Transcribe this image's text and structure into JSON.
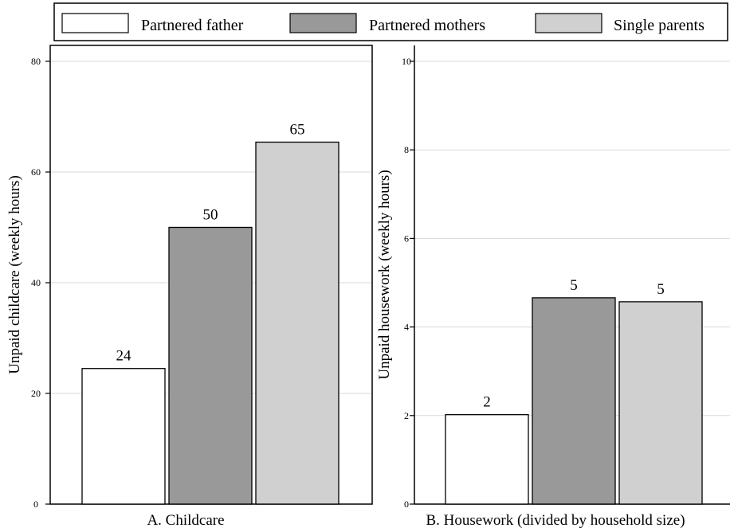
{
  "legend": {
    "items": [
      {
        "label": "Partnered father",
        "color": "#ffffff"
      },
      {
        "label": "Partnered mothers",
        "color": "#999999"
      },
      {
        "label": "Single parents",
        "color": "#d0d0d0"
      }
    ],
    "placement": "top"
  },
  "chart_data": [
    {
      "type": "bar",
      "title": "",
      "xlabel": "A. Childcare",
      "ylabel": "Unpaid childcare (weekly hours)",
      "ylim": [
        0,
        80
      ],
      "yticks": [
        0,
        20,
        40,
        60,
        80
      ],
      "grid": true,
      "series": [
        {
          "name": "Partnered father",
          "values": [
            24.5
          ],
          "data_label": "24",
          "color": "#ffffff"
        },
        {
          "name": "Partnered mothers",
          "values": [
            50.0
          ],
          "data_label": "50",
          "color": "#999999"
        },
        {
          "name": "Single parents",
          "values": [
            65.4
          ],
          "data_label": "65",
          "color": "#d0d0d0"
        }
      ]
    },
    {
      "type": "bar",
      "title": "",
      "xlabel": "B. Housework (divided by household size)",
      "ylabel": "Unpaid housework (weekly hours)",
      "ylim": [
        0,
        10
      ],
      "yticks": [
        0,
        2,
        4,
        6,
        8,
        10
      ],
      "grid": true,
      "series": [
        {
          "name": "Partnered father",
          "values": [
            2.02
          ],
          "data_label": "2",
          "color": "#ffffff"
        },
        {
          "name": "Partnered mothers",
          "values": [
            4.66
          ],
          "data_label": "5",
          "color": "#999999"
        },
        {
          "name": "Single parents",
          "values": [
            4.57
          ],
          "data_label": "5",
          "color": "#d0d0d0"
        }
      ]
    }
  ]
}
